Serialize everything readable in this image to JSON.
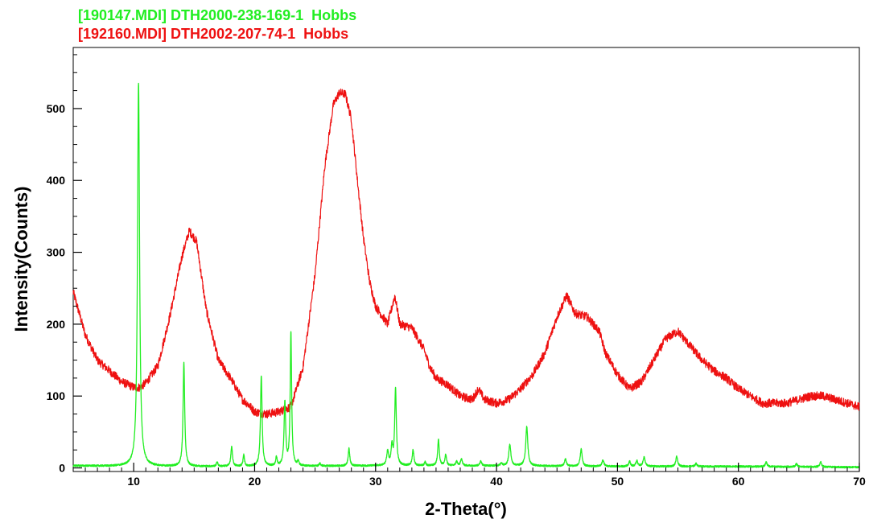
{
  "chart_data": {
    "type": "line",
    "title": "",
    "xlabel": "2-Theta(°)",
    "ylabel": "Intensity(Counts)",
    "xlim": [
      5,
      70
    ],
    "ylim": [
      -5,
      585
    ],
    "xticks": [
      10,
      20,
      30,
      40,
      50,
      60,
      70
    ],
    "yticks": [
      0,
      100,
      200,
      300,
      400,
      500
    ],
    "x_minor_step": 1,
    "grid": false,
    "legend": "top-left",
    "series": [
      {
        "name": "[190147.MDI] DTH2000-238-169-1  Hobbs",
        "color": "#22ee22",
        "baseline": [
          [
            5,
            3
          ],
          [
            10,
            2
          ],
          [
            20,
            2
          ],
          [
            30,
            3
          ],
          [
            40,
            3
          ],
          [
            50,
            2
          ],
          [
            60,
            2
          ],
          [
            70,
            1
          ]
        ],
        "peaks": [
          {
            "x": 10.4,
            "h": 534,
            "w": 0.1
          },
          {
            "x": 14.15,
            "h": 144,
            "w": 0.08
          },
          {
            "x": 16.9,
            "h": 6,
            "w": 0.07
          },
          {
            "x": 18.1,
            "h": 27,
            "w": 0.08
          },
          {
            "x": 19.1,
            "h": 16,
            "w": 0.07
          },
          {
            "x": 20.55,
            "h": 126,
            "w": 0.08
          },
          {
            "x": 21.8,
            "h": 12,
            "w": 0.07
          },
          {
            "x": 22.5,
            "h": 88,
            "w": 0.08
          },
          {
            "x": 23.0,
            "h": 186,
            "w": 0.07
          },
          {
            "x": 23.6,
            "h": 6,
            "w": 0.07
          },
          {
            "x": 25.4,
            "h": 4,
            "w": 0.07
          },
          {
            "x": 27.8,
            "h": 24,
            "w": 0.08
          },
          {
            "x": 31.0,
            "h": 20,
            "w": 0.09
          },
          {
            "x": 31.35,
            "h": 26,
            "w": 0.08
          },
          {
            "x": 31.65,
            "h": 108,
            "w": 0.08
          },
          {
            "x": 33.1,
            "h": 22,
            "w": 0.08
          },
          {
            "x": 34.1,
            "h": 5,
            "w": 0.07
          },
          {
            "x": 35.2,
            "h": 36,
            "w": 0.08
          },
          {
            "x": 35.8,
            "h": 15,
            "w": 0.08
          },
          {
            "x": 36.7,
            "h": 6,
            "w": 0.08
          },
          {
            "x": 37.1,
            "h": 10,
            "w": 0.08
          },
          {
            "x": 38.7,
            "h": 7,
            "w": 0.08
          },
          {
            "x": 40.4,
            "h": 4,
            "w": 0.08
          },
          {
            "x": 41.1,
            "h": 30,
            "w": 0.1
          },
          {
            "x": 42.5,
            "h": 55,
            "w": 0.1
          },
          {
            "x": 45.7,
            "h": 10,
            "w": 0.09
          },
          {
            "x": 47.0,
            "h": 24,
            "w": 0.09
          },
          {
            "x": 48.8,
            "h": 9,
            "w": 0.09
          },
          {
            "x": 51.0,
            "h": 7,
            "w": 0.09
          },
          {
            "x": 51.6,
            "h": 8,
            "w": 0.09
          },
          {
            "x": 52.2,
            "h": 13,
            "w": 0.1
          },
          {
            "x": 54.9,
            "h": 14,
            "w": 0.09
          },
          {
            "x": 56.5,
            "h": 4,
            "w": 0.09
          },
          {
            "x": 62.3,
            "h": 6,
            "w": 0.09
          },
          {
            "x": 64.8,
            "h": 4,
            "w": 0.09
          },
          {
            "x": 66.8,
            "h": 7,
            "w": 0.09
          }
        ]
      },
      {
        "name": "[192160.MDI] DTH2002-207-74-1  Hobbs",
        "color": "#ee1111",
        "points": [
          [
            5,
            245
          ],
          [
            6,
            185
          ],
          [
            7,
            150
          ],
          [
            8,
            135
          ],
          [
            9,
            120
          ],
          [
            10,
            112
          ],
          [
            10.5,
            112
          ],
          [
            11,
            118
          ],
          [
            12,
            142
          ],
          [
            13,
            212
          ],
          [
            14,
            295
          ],
          [
            14.6,
            330
          ],
          [
            15.2,
            315
          ],
          [
            16,
            220
          ],
          [
            17,
            150
          ],
          [
            18,
            125
          ],
          [
            19,
            95
          ],
          [
            19.5,
            88
          ],
          [
            20,
            78
          ],
          [
            21,
            75
          ],
          [
            22,
            78
          ],
          [
            23,
            85
          ],
          [
            24,
            140
          ],
          [
            25,
            270
          ],
          [
            25.8,
            420
          ],
          [
            26.5,
            505
          ],
          [
            27,
            522
          ],
          [
            27.5,
            520
          ],
          [
            28,
            485
          ],
          [
            28.5,
            400
          ],
          [
            29,
            320
          ],
          [
            29.5,
            260
          ],
          [
            30,
            225
          ],
          [
            31,
            200
          ],
          [
            31.6,
            240
          ],
          [
            32,
            200
          ],
          [
            33,
            195
          ],
          [
            34,
            165
          ],
          [
            34.5,
            140
          ],
          [
            35,
            125
          ],
          [
            36,
            115
          ],
          [
            37,
            100
          ],
          [
            38,
            95
          ],
          [
            38.5,
            110
          ],
          [
            39,
            95
          ],
          [
            40,
            90
          ],
          [
            41,
            95
          ],
          [
            42,
            110
          ],
          [
            43,
            130
          ],
          [
            44,
            160
          ],
          [
            45,
            210
          ],
          [
            45.8,
            240
          ],
          [
            46.5,
            215
          ],
          [
            47.5,
            210
          ],
          [
            48.5,
            190
          ],
          [
            49,
            160
          ],
          [
            50,
            130
          ],
          [
            51,
            110
          ],
          [
            52,
            120
          ],
          [
            53,
            150
          ],
          [
            54,
            180
          ],
          [
            55,
            190
          ],
          [
            56,
            170
          ],
          [
            57,
            150
          ],
          [
            58,
            135
          ],
          [
            59,
            125
          ],
          [
            60,
            110
          ],
          [
            62,
            90
          ],
          [
            64,
            90
          ],
          [
            66,
            100
          ],
          [
            67,
            100
          ],
          [
            68,
            95
          ],
          [
            69,
            90
          ],
          [
            70,
            85
          ]
        ]
      }
    ]
  }
}
